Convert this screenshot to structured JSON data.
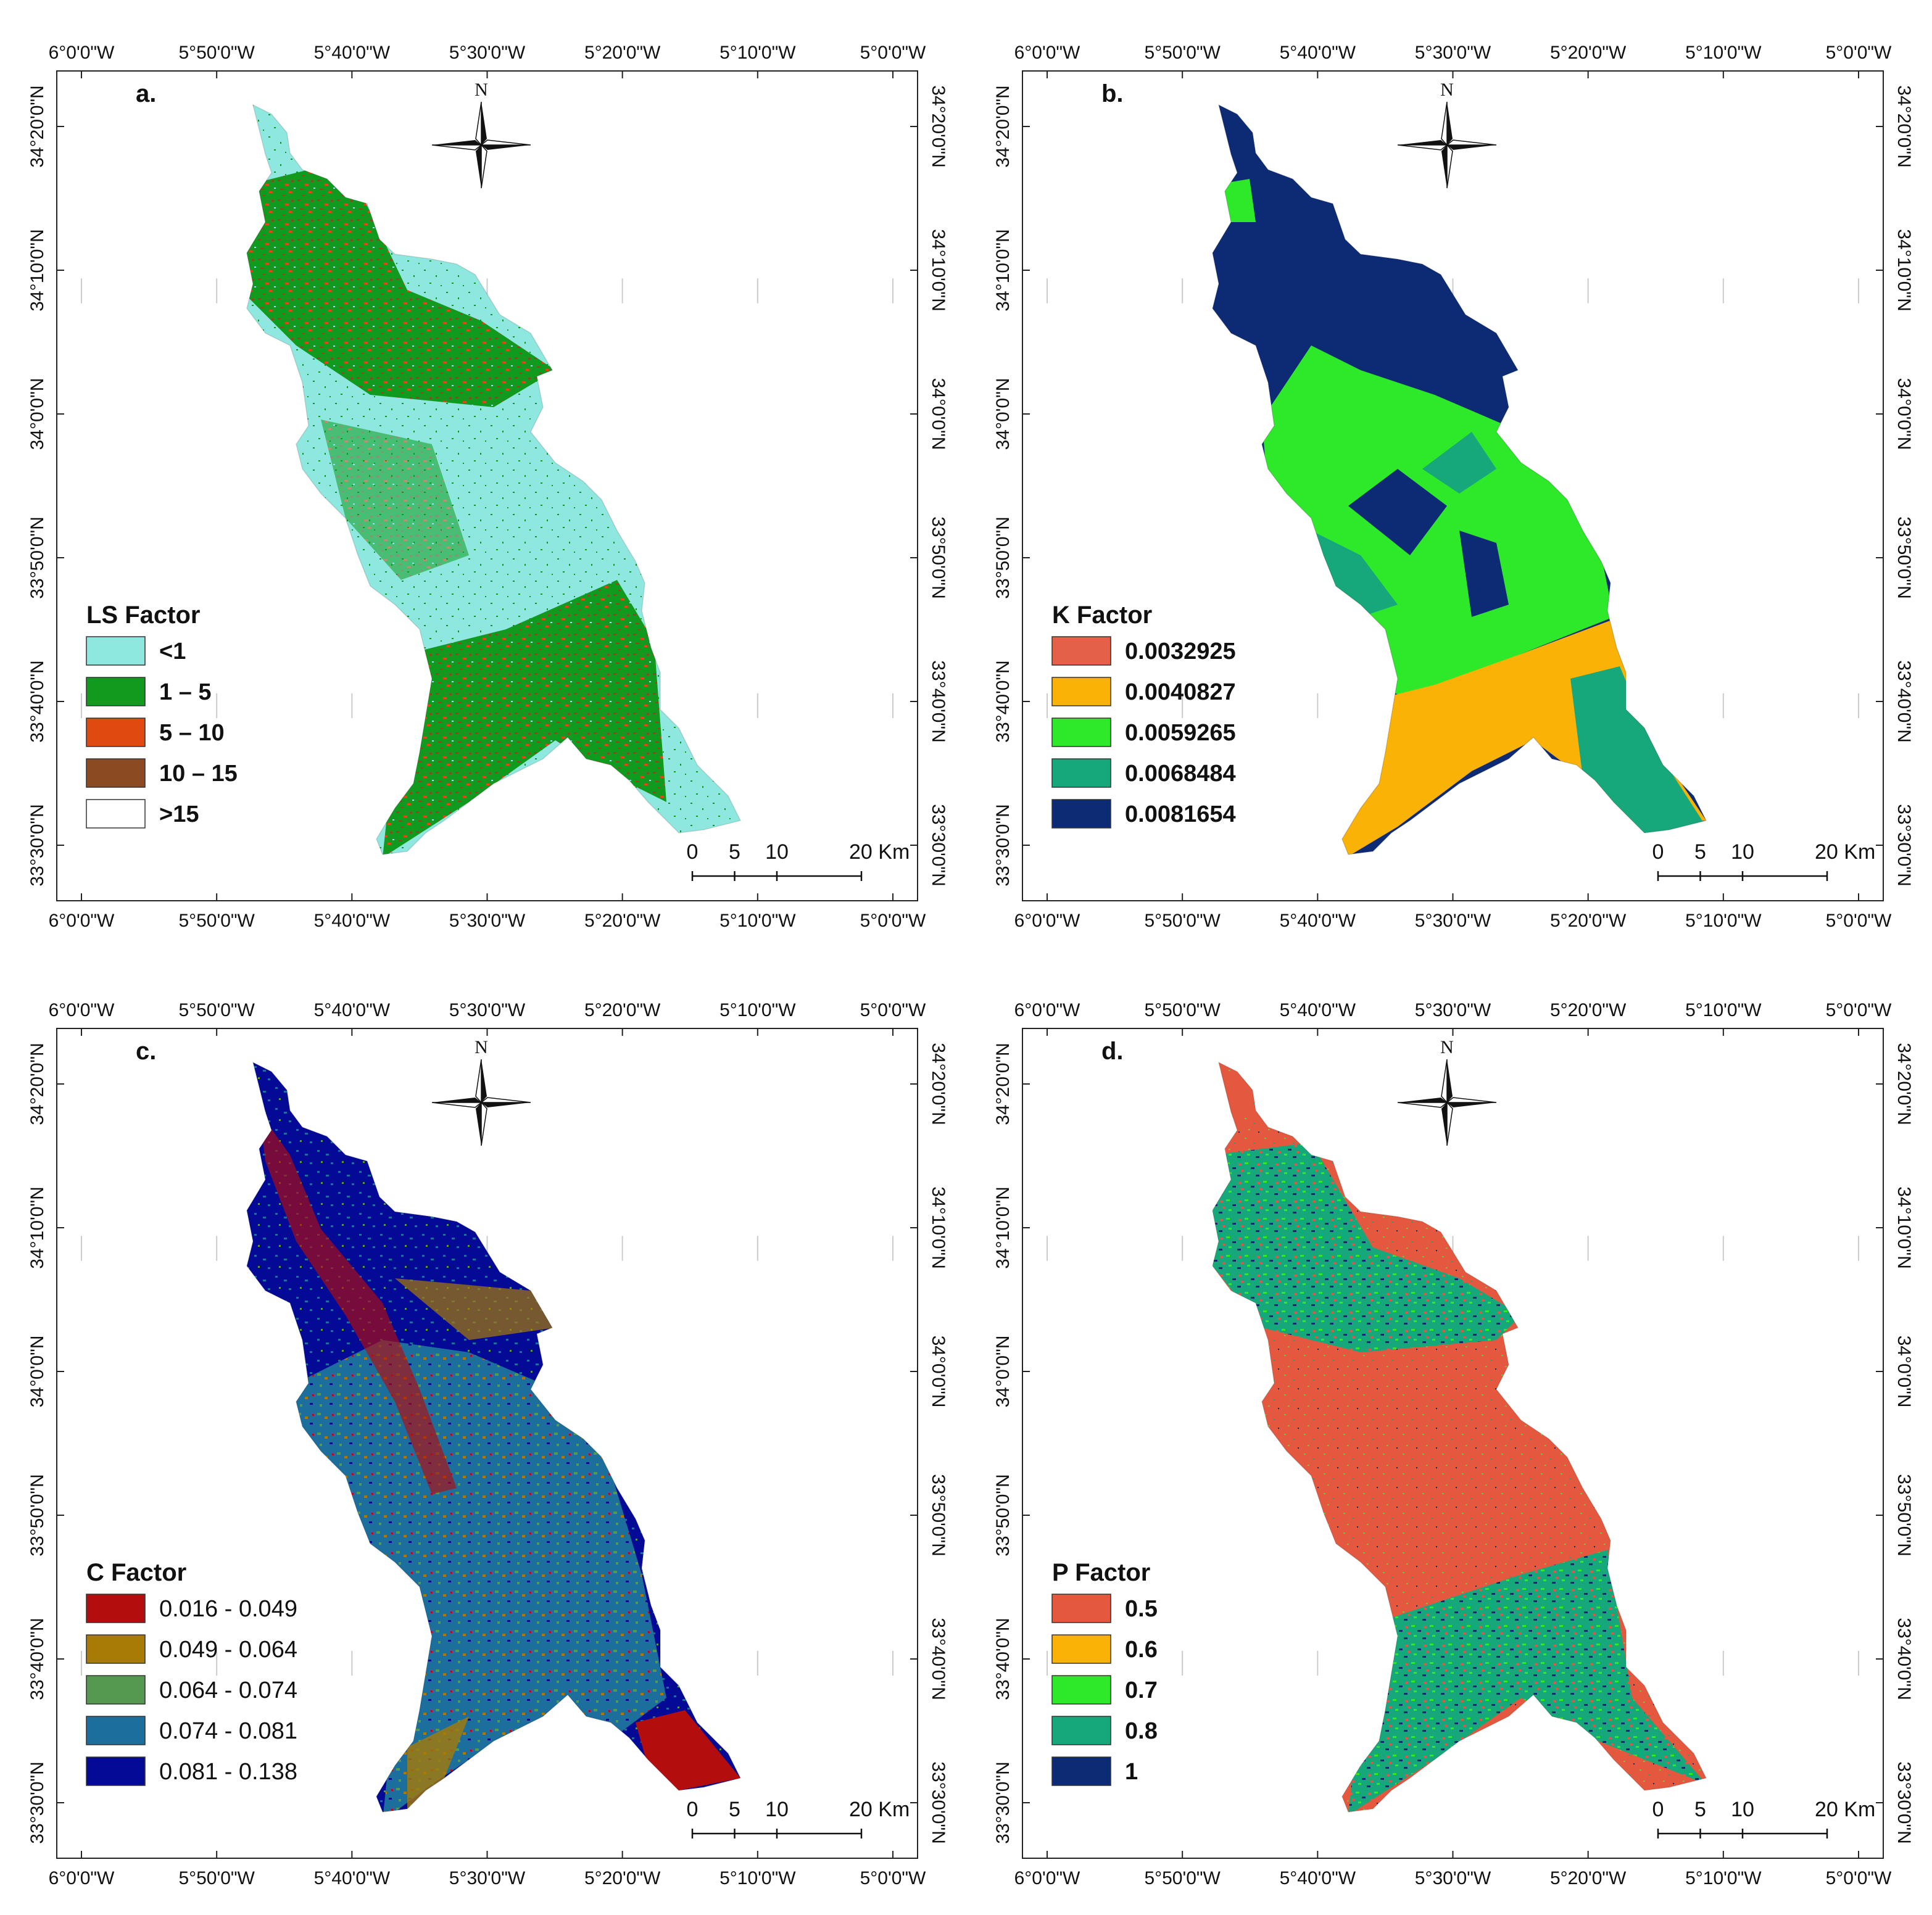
{
  "panels": [
    {
      "id": "a",
      "label": "a.",
      "lon_ticks": [
        "6°0'0\"W",
        "5°50'0\"W",
        "5°40'0\"W",
        "5°30'0\"W",
        "5°20'0\"W",
        "5°10'0\"W",
        "5°0'0\"W"
      ],
      "lat_ticks": [
        "34°20'0\"N",
        "34°10'0\"N",
        "34°0'0\"N",
        "33°50'0\"N",
        "33°40'0\"N",
        "33°30'0\"N"
      ],
      "north": "N",
      "legend": {
        "title": "LS Factor",
        "classes": [
          {
            "label": "<1",
            "color": "#8ee8e0"
          },
          {
            "label": "1 – 5",
            "color": "#129a1e"
          },
          {
            "label": "5 – 10",
            "color": "#e04a10"
          },
          {
            "label": "10 – 15",
            "color": "#8c4a22"
          },
          {
            "label": ">15",
            "color": "#ffffff"
          }
        ]
      },
      "scale": {
        "ticks": [
          "0",
          "5",
          "10",
          "20 Km"
        ]
      }
    },
    {
      "id": "b",
      "label": "b.",
      "lon_ticks": [
        "6°0'0\"W",
        "5°50'0\"W",
        "5°40'0\"W",
        "5°30'0\"W",
        "5°20'0\"W",
        "5°10'0\"W",
        "5°0'0\"W"
      ],
      "lat_ticks": [
        "34°20'0\"N",
        "34°10'0\"N",
        "34°0'0\"N",
        "33°50'0\"N",
        "33°40'0\"N",
        "33°30'0\"N"
      ],
      "north": "N",
      "legend": {
        "title": "K Factor",
        "classes": [
          {
            "label": "0.0032925",
            "color": "#e46048"
          },
          {
            "label": "0.0040827",
            "color": "#fbb206"
          },
          {
            "label": "0.0059265",
            "color": "#2ee82a"
          },
          {
            "label": "0.0068484",
            "color": "#16a87a"
          },
          {
            "label": "0.0081654",
            "color": "#0d2a74"
          }
        ]
      },
      "scale": {
        "ticks": [
          "0",
          "5",
          "10",
          "20 Km"
        ]
      }
    },
    {
      "id": "c",
      "label": "c.",
      "lon_ticks": [
        "6°0'0\"W",
        "5°50'0\"W",
        "5°40'0\"W",
        "5°30'0\"W",
        "5°20'0\"W",
        "5°10'0\"W",
        "5°0'0\"W"
      ],
      "lat_ticks": [
        "34°20'0\"N",
        "34°10'0\"N",
        "34°0'0\"N",
        "33°50'0\"N",
        "33°40'0\"N",
        "33°30'0\"N"
      ],
      "north": "N",
      "legend": {
        "title": "C Factor",
        "classes": [
          {
            "label": "0.016 - 0.049",
            "color": "#b40d0d"
          },
          {
            "label": "0.049 - 0.064",
            "color": "#a87a06"
          },
          {
            "label": "0.064 - 0.074",
            "color": "#559850"
          },
          {
            "label": "0.074 - 0.081",
            "color": "#1c6e9c"
          },
          {
            "label": "0.081 - 0.138",
            "color": "#050a96"
          }
        ]
      },
      "scale": {
        "ticks": [
          "0",
          "5",
          "10",
          "20 Km"
        ]
      }
    },
    {
      "id": "d",
      "label": "d.",
      "lon_ticks": [
        "6°0'0\"W",
        "5°50'0\"W",
        "5°40'0\"W",
        "5°30'0\"W",
        "5°20'0\"W",
        "5°10'0\"W",
        "5°0'0\"W"
      ],
      "lat_ticks": [
        "34°20'0\"N",
        "34°10'0\"N",
        "34°0'0\"N",
        "33°50'0\"N",
        "33°40'0\"N",
        "33°30'0\"N"
      ],
      "north": "N",
      "legend": {
        "title": "P Factor",
        "classes": [
          {
            "label": "0.5",
            "color": "#e4583f"
          },
          {
            "label": "0.6",
            "color": "#fbb206"
          },
          {
            "label": "0.7",
            "color": "#2ee82a"
          },
          {
            "label": "0.8",
            "color": "#16a87a"
          },
          {
            "label": "1",
            "color": "#0d2a74"
          }
        ]
      },
      "scale": {
        "ticks": [
          "0",
          "5",
          "10",
          "20 Km"
        ]
      }
    }
  ]
}
